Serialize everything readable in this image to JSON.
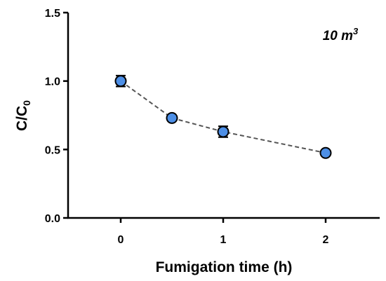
{
  "chart_data": {
    "type": "scatter",
    "xlabel": "Fumigation time (h)",
    "ylabel_main": "C/C",
    "ylabel_sub": "0",
    "annotation_main": "10 m",
    "annotation_sup": "3",
    "x_categories": [
      "0",
      "0.5",
      "1",
      "2"
    ],
    "x_tick_labels": [
      "0",
      "1",
      "2"
    ],
    "y_tick_labels": [
      "0.0",
      "0.5",
      "1.0",
      "1.5"
    ],
    "ylim": [
      0,
      1.5
    ],
    "grid": false,
    "connect_points": "dashed",
    "marker_color": "#4d8fe6",
    "series": [
      {
        "x": [
          0,
          0.5,
          1,
          2
        ],
        "y": [
          1.0,
          0.73,
          0.63,
          0.475
        ],
        "error": [
          0.04,
          0.02,
          0.04,
          0.015
        ]
      }
    ]
  }
}
